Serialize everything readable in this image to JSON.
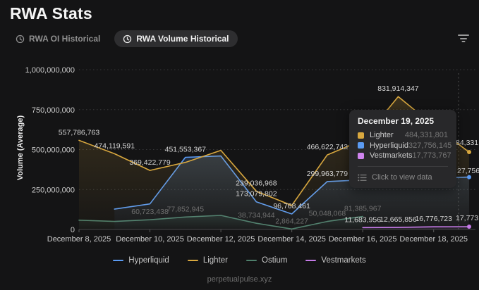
{
  "header": {
    "title": "RWA Stats"
  },
  "tabs": [
    {
      "label": "RWA OI Historical",
      "active": false
    },
    {
      "label": "RWA Volume Historical",
      "active": true
    }
  ],
  "chart_data": {
    "type": "line",
    "ylabel": "Volume (Average)",
    "ylim": [
      0,
      1000000000
    ],
    "grid": "dotted-horizontal",
    "legend_position": "bottom",
    "y_ticks": [
      "0",
      "250,000,000",
      "500,000,000",
      "750,000,000",
      "1,000,000,000"
    ],
    "y_tick_values": [
      0,
      250000000,
      500000000,
      750000000,
      1000000000
    ],
    "x": [
      "December 8, 2025",
      "December 9, 2025",
      "December 10, 2025",
      "December 11, 2025",
      "December 12, 2025",
      "December 13, 2025",
      "December 14, 2025",
      "December 15, 2025",
      "December 16, 2025",
      "December 17, 2025",
      "December 18, 2025",
      "December 19, 2025"
    ],
    "x_tick_labels": [
      "December 8, 2025",
      "December 10, 2025",
      "December 12, 2025",
      "December 14, 2025",
      "December 16, 2025",
      "December 18, 2025"
    ],
    "x_tick_indices": [
      0,
      2,
      4,
      6,
      8,
      10
    ],
    "series": [
      {
        "name": "Hyperliquid",
        "color": "#5b9bf3",
        "label_color": "#d6d6d6",
        "values": [
          null,
          127218459,
          160000000,
          451553367,
          460000000,
          173079802,
          96768461,
          299963779,
          310000000,
          318000000,
          322000000,
          327756145
        ]
      },
      {
        "name": "Lighter",
        "color": "#d9a83f",
        "label_color": "#d6d6d6",
        "values": [
          557786763,
          474119591,
          369422779,
          420000000,
          495000000,
          239036968,
          150000000,
          466622743,
          560000000,
          831914347,
          650000000,
          484331801
        ]
      },
      {
        "name": "Ostium",
        "color": "#4e7f6b",
        "label_color": "#6f6f6f",
        "values": [
          58000000,
          50000000,
          60723438,
          77852945,
          88000000,
          38734944,
          2864227,
          50048068,
          81385967,
          null,
          null,
          null
        ]
      },
      {
        "name": "Vestmarkets",
        "color": "#c47ae6",
        "label_color": "#d6d6d6",
        "values": [
          null,
          null,
          null,
          null,
          null,
          null,
          null,
          null,
          11683956,
          12665856,
          16776723,
          17773767
        ]
      }
    ],
    "point_labels": [
      {
        "s": 1,
        "i": 0,
        "t": "557,786,763"
      },
      {
        "s": 1,
        "i": 1,
        "t": "474,119,591"
      },
      {
        "s": 1,
        "i": 2,
        "t": "369,422,779"
      },
      {
        "s": 0,
        "i": 3,
        "t": "451,553,367"
      },
      {
        "s": 1,
        "i": 5,
        "t": "239,036,968"
      },
      {
        "s": 0,
        "i": 5,
        "t": "173,079,802"
      },
      {
        "s": 0,
        "i": 6,
        "t": "96,768,461"
      },
      {
        "s": 1,
        "i": 7,
        "t": "466,622,743"
      },
      {
        "s": 0,
        "i": 7,
        "t": "299,963,779"
      },
      {
        "s": 1,
        "i": 9,
        "t": "831,914,347"
      },
      {
        "s": 2,
        "i": 2,
        "t": "60,723,438"
      },
      {
        "s": 2,
        "i": 3,
        "t": "77,852,945"
      },
      {
        "s": 2,
        "i": 5,
        "t": "38,734,944"
      },
      {
        "s": 2,
        "i": 6,
        "t": "2,864,227"
      },
      {
        "s": 2,
        "i": 7,
        "t": "50,048,068"
      },
      {
        "s": 2,
        "i": 8,
        "t": "81,385,967"
      },
      {
        "s": 3,
        "i": 8,
        "t": "11,683,956"
      },
      {
        "s": 3,
        "i": 9,
        "t": "12,665,856"
      },
      {
        "s": 3,
        "i": 10,
        "t": "16,776,723"
      }
    ],
    "edge_labels": [
      {
        "t": "84,331,",
        "x": 646,
        "y": 206
      },
      {
        "t": "27,756,",
        "x": 648,
        "y": 246
      },
      {
        "t": "17,773,",
        "x": 646,
        "y": 313
      }
    ],
    "end_dot_series": [
      "Hyperliquid",
      "Lighter",
      "Vestmarkets"
    ]
  },
  "tooltip": {
    "date": "December 19, 2025",
    "rows": [
      {
        "name": "Lighter",
        "color": "#d9a83f",
        "value": "484,331,801"
      },
      {
        "name": "Hyperliquid",
        "color": "#5b9bf3",
        "value": "327,756,145"
      },
      {
        "name": "Vestmarkets",
        "color": "#cf84ee",
        "value": "17,773,767"
      }
    ],
    "action": "Click to view data"
  },
  "footer": {
    "text": "perpetualpulse.xyz"
  }
}
